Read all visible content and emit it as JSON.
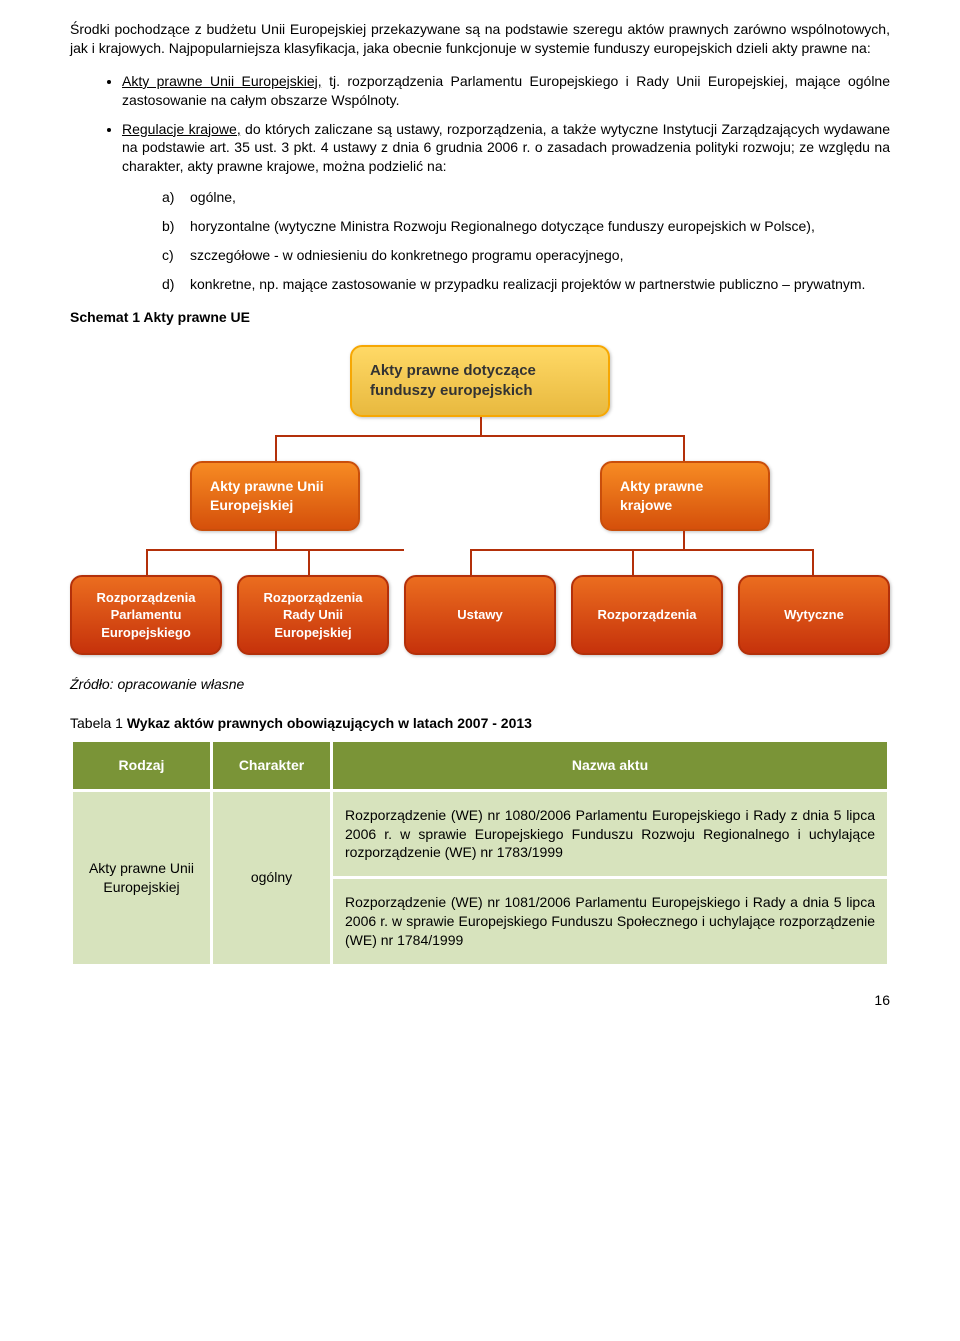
{
  "intro1": "Środki pochodzące z budżetu Unii Europejskiej przekazywane są na podstawie szeregu aktów prawnych zarówno wspólnotowych, jak i krajowych. Najpopularniejsza klasyfikacja, jaka obecnie funkcjonuje w systemie funduszy europejskich dzieli akty prawne na:",
  "bullets": [
    "Akty prawne Unii Europejskiej, tj. rozporządzenia Parlamentu Europejskiego i Rady Unii Europejskiej, mające ogólne zastosowanie na całym obszarze Wspólnoty.",
    "Regulacje krajowe, do których zaliczane są ustawy, rozporządzenia, a także wytyczne Instytucji Zarządzających wydawane na podstawie art. 35 ust. 3 pkt. 4 ustawy z dnia 6 grudnia 2006 r. o zasadach prowadzenia polityki rozwoju; ze względu na charakter, akty prawne krajowe, można podzielić na:"
  ],
  "sub_items": [
    {
      "m": "a)",
      "t": "ogólne,"
    },
    {
      "m": "b)",
      "t": "horyzontalne (wytyczne Ministra Rozwoju Regionalnego dotyczące funduszy europejskich w Polsce),"
    },
    {
      "m": "c)",
      "t": "szczegółowe - w odniesieniu do konkretnego programu operacyjnego,"
    },
    {
      "m": "d)",
      "t": "konkretne, np. mające zastosowanie w przypadku realizacji projektów w partnerstwie publiczno – prywatnym."
    }
  ],
  "schema_label": "Schemat 1 Akty prawne UE",
  "diagram": {
    "root": "Akty prawne dotyczące funduszy europejskich",
    "level2": [
      "Akty prawne Unii Europejskiej",
      "Akty prawne krajowe"
    ],
    "level3": [
      "Rozporządzenia Parlamentu Europejskiego",
      "Rozporządzenia Rady Unii Europejskiej",
      "Ustawy",
      "Rozporządzenia",
      "Wytyczne"
    ],
    "colors": {
      "root_bg_top": "#ffd966",
      "root_bg_bot": "#e8b93f",
      "root_border": "#f6a703",
      "mid_bg_top": "#f78b23",
      "mid_bg_bot": "#d5500b",
      "mid_border": "#c94e0b",
      "leaf_bg_top": "#eb6d1f",
      "leaf_bg_bot": "#c6320b",
      "leaf_border": "#b3300a",
      "connector": "#b3300a"
    }
  },
  "source": "Źródło: opracowanie własne",
  "table": {
    "title_num": "Tabela 1 ",
    "title_name": "Wykaz aktów prawnych obowiązujących w latach 2007 - 2013",
    "header_bg": "#7a9437",
    "header_fg": "#ffffff",
    "body_bg": "#d7e3bd",
    "border_color": "#ffffff",
    "columns": [
      "Rodzaj",
      "Charakter",
      "Nazwa aktu"
    ],
    "rows": [
      {
        "rodzaj": "Akty prawne Unii Europejskiej",
        "charakter": "ogólny",
        "nazwa": [
          "Rozporządzenie (WE) nr 1080/2006 Parlamentu Europejskiego i Rady z dnia 5 lipca 2006 r. w sprawie Europejskiego Funduszu Rozwoju Regionalnego i uchylające rozporządzenie (WE) nr 1783/1999",
          "Rozporządzenie (WE) nr 1081/2006 Parlamentu Europejskiego i Rady a dnia 5 lipca 2006 r. w sprawie Europejskiego Funduszu Społecznego i uchylające rozporządzenie (WE) nr 1784/1999"
        ]
      }
    ]
  },
  "page_number": "16"
}
